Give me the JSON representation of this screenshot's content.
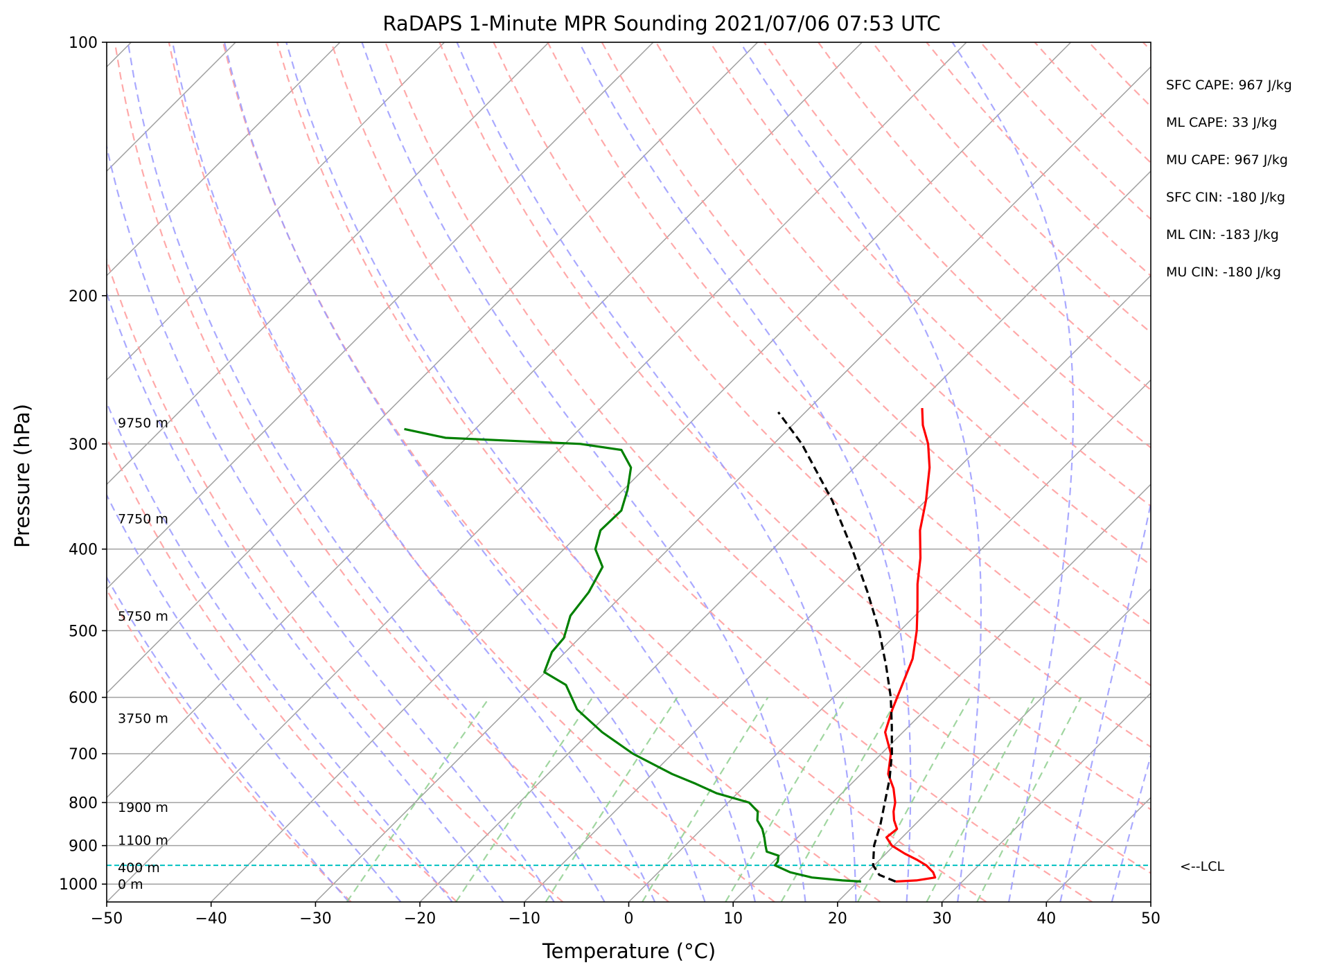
{
  "chart_data": {
    "type": "line",
    "title": "RaDAPS 1-Minute MPR Sounding 2021/07/06 07:53 UTC",
    "xlabel": "Temperature (°C)",
    "ylabel": "Pressure (hPa)",
    "xlim": [
      -50,
      50
    ],
    "ylim": [
      1050,
      100
    ],
    "y_scale": "log",
    "skew_t": true,
    "x_ticks": [
      -50,
      -40,
      -30,
      -20,
      -10,
      0,
      10,
      20,
      30,
      40,
      50
    ],
    "y_ticks": [
      100,
      200,
      300,
      400,
      500,
      600,
      700,
      800,
      900,
      1000
    ],
    "colors": {
      "temperature": "#ff0000",
      "dewpoint": "#008000",
      "parcel": "#000000",
      "lcl": "#00c0c0",
      "dry_adiabats": "#ff9a9a",
      "moist_adiabats": "#9a9aff",
      "mixing_ratio": "#8fcf8f",
      "isotherms": "#a0a0a0"
    },
    "series": [
      {
        "key": "temperature",
        "pressure": [
          993,
          990,
          982,
          968,
          950,
          935,
          920,
          900,
          880,
          860,
          840,
          820,
          800,
          770,
          740,
          700,
          660,
          620,
          580,
          540,
          500,
          470,
          440,
          410,
          380,
          350,
          320,
          300,
          285,
          272
        ],
        "temperature": [
          23.6,
          25.5,
          27.0,
          26.3,
          25.0,
          23.5,
          21.8,
          19.8,
          18.5,
          18.7,
          17.6,
          16.7,
          16.0,
          14.5,
          12.6,
          10.9,
          8.3,
          6.8,
          5.4,
          3.9,
          1.6,
          -0.5,
          -2.8,
          -5.0,
          -7.7,
          -10.0,
          -12.8,
          -15.2,
          -17.5,
          -19.2
        ]
      },
      {
        "key": "dewpoint",
        "pressure": [
          993,
          990,
          982,
          968,
          950,
          940,
          925,
          915,
          900,
          880,
          860,
          840,
          820,
          800,
          780,
          760,
          740,
          700,
          660,
          620,
          580,
          560,
          530,
          510,
          480,
          450,
          420,
          400,
          380,
          360,
          340,
          320,
          305,
          300,
          295,
          288
        ],
        "temperature": [
          20.3,
          18.4,
          15.2,
          12.6,
          10.5,
          10.4,
          9.9,
          8.4,
          7.7,
          6.8,
          5.8,
          4.5,
          3.7,
          2.0,
          -2.0,
          -4.9,
          -8.1,
          -13.8,
          -18.8,
          -23.4,
          -26.8,
          -30.1,
          -31.3,
          -31.5,
          -33.0,
          -33.5,
          -34.6,
          -37.0,
          -38.3,
          -38.2,
          -39.6,
          -41.4,
          -44.0,
          -48.5,
          -62.0,
          -66.8
        ]
      },
      {
        "key": "parcel",
        "pressure": [
          993,
          975,
          950,
          900,
          850,
          800,
          750,
          700,
          650,
          600,
          550,
          500,
          450,
          400,
          350,
          300,
          275
        ],
        "temperature": [
          23.6,
          21.4,
          19.9,
          18.1,
          16.7,
          15.0,
          13.2,
          11.0,
          8.4,
          5.5,
          2.0,
          -2.0,
          -6.8,
          -12.4,
          -19.0,
          -27.3,
          -32.6
        ]
      }
    ],
    "lcl_pressure": 950,
    "lcl_label": "<--LCL",
    "height_labels": [
      {
        "text": "0 m",
        "pressure": 1000
      },
      {
        "text": "400 m",
        "pressure": 955
      },
      {
        "text": "1100 m",
        "pressure": 886
      },
      {
        "text": "1900 m",
        "pressure": 810
      },
      {
        "text": "3750 m",
        "pressure": 635
      },
      {
        "text": "5750 m",
        "pressure": 480
      },
      {
        "text": "7750 m",
        "pressure": 368
      },
      {
        "text": "9750 m",
        "pressure": 283
      }
    ],
    "stats": [
      "SFC CAPE: 967 J/kg",
      "ML CAPE: 33 J/kg",
      "MU CAPE: 967 J/kg",
      "SFC CIN: -180 J/kg",
      "ML CIN: -183 J/kg",
      "MU CIN: -180 J/kg"
    ]
  }
}
